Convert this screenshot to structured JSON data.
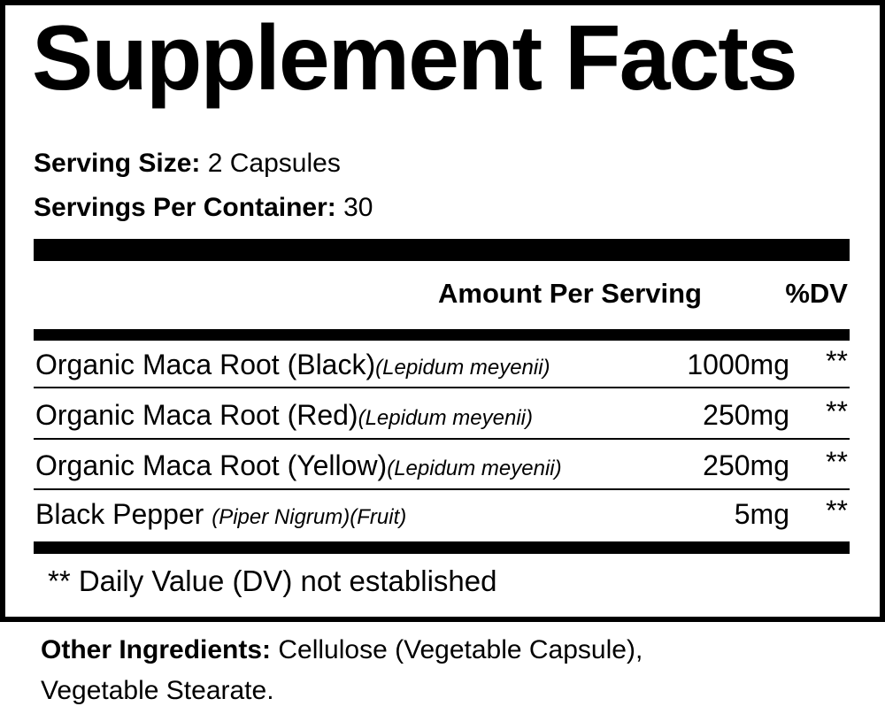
{
  "title": "Supplement Facts",
  "serving_size": {
    "label": "Serving Size:",
    "value": "2 Capsules"
  },
  "servings_per_container": {
    "label": "Servings Per Container:",
    "value": "30"
  },
  "header": {
    "amount": "Amount Per Serving",
    "dv": "%DV"
  },
  "rows": [
    {
      "name": "Organic Maca Root (Black)",
      "latin": "(Lepidum meyenii)",
      "amount": "1000mg",
      "dv": "**"
    },
    {
      "name": "Organic Maca Root (Red)",
      "latin": "(Lepidum meyenii)",
      "amount": "250mg",
      "dv": "**"
    },
    {
      "name": "Organic Maca Root (Yellow)",
      "latin": "(Lepidum meyenii)",
      "amount": "250mg",
      "dv": "**"
    },
    {
      "name": "Black Pepper ",
      "latin": "(Piper Nigrum)(Fruit)",
      "amount": "5mg",
      "dv": "**"
    }
  ],
  "footnote": "** Daily Value (DV) not established",
  "other_ingredients": {
    "label": "Other Ingredients:",
    "line1": " Cellulose (Vegetable Capsule),",
    "line2": "Vegetable Stearate."
  }
}
